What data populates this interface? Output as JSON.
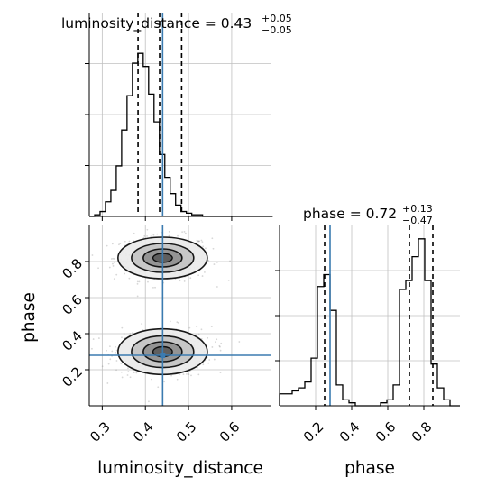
{
  "chart_data": {
    "type": "corner",
    "parameters": [
      "luminosity_distance",
      "phase"
    ],
    "injection": {
      "luminosity_distance": 0.44,
      "phase": 0.28
    },
    "colors": {
      "injection": "#3b7bb0",
      "hist": "#000000",
      "grid": "#c0c0c0",
      "scatter": "#8c8c8c"
    },
    "grid": true,
    "marginals": [
      {
        "parameter": "luminosity_distance",
        "title": "luminosity_distance = 0.43",
        "title_sup": "+0.05",
        "title_sub": "−0.05",
        "median": 0.43,
        "quantiles": [
          0.383,
          0.433,
          0.484
        ],
        "xlim": [
          0.27,
          0.69
        ],
        "bins": {
          "start": 0.27,
          "width": 0.0125,
          "values": [
            0,
            1,
            3,
            9,
            16,
            31,
            53,
            74,
            94,
            100,
            92,
            75,
            58,
            38,
            24,
            14,
            7,
            3,
            2,
            1,
            1,
            0,
            0,
            0,
            0,
            0,
            0,
            0,
            0,
            0,
            0,
            0,
            0,
            0
          ]
        },
        "ytick_count": 3
      },
      {
        "parameter": "phase",
        "title": "phase = 0.72",
        "title_sup": "+0.13",
        "title_sub": "−0.47",
        "median": 0.72,
        "quantiles": [
          0.25,
          0.72,
          0.85
        ],
        "xlim": [
          0.0,
          1.0
        ],
        "bins": {
          "start": 0.0,
          "width": 0.035,
          "values": [
            4,
            4,
            5,
            6,
            8,
            16,
            40,
            44,
            32,
            7,
            2,
            1,
            0,
            0,
            0,
            0,
            1,
            2,
            7,
            39,
            42,
            50,
            56,
            42,
            14,
            6,
            2,
            0,
            0
          ]
        },
        "ytick_count": 3
      }
    ],
    "joint": {
      "x": "luminosity_distance",
      "y": "phase",
      "xlim": [
        0.27,
        0.69
      ],
      "ylim": [
        0.0,
        1.0
      ],
      "modes": [
        {
          "center": [
            0.44,
            0.82
          ],
          "sd": [
            0.045,
            0.05
          ]
        },
        {
          "center": [
            0.44,
            0.3
          ],
          "sd": [
            0.045,
            0.055
          ]
        }
      ]
    },
    "xticks": {
      "luminosity_distance": [
        0.3,
        0.4,
        0.5,
        0.6
      ],
      "phase": [
        0.2,
        0.4,
        0.6,
        0.8
      ]
    },
    "yticks": {
      "phase": [
        0.2,
        0.4,
        0.6,
        0.8
      ]
    },
    "tick_labels": {
      "luminosity_distance": [
        "0.3",
        "0.4",
        "0.5",
        "0.6"
      ],
      "phase": [
        "0.2",
        "0.4",
        "0.6",
        "0.8"
      ]
    },
    "xlabel_left": "luminosity_distance",
    "xlabel_right": "phase",
    "ylabel_joint": "phase"
  }
}
